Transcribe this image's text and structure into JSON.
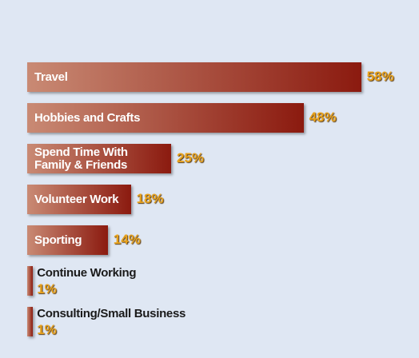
{
  "chart_data": {
    "type": "bar",
    "orientation": "horizontal",
    "categories": [
      "Travel",
      "Hobbies and Crafts",
      "Spend Time With\nFamily & Friends",
      "Volunteer Work",
      "Sporting",
      "Continue Working",
      "Consulting/Small Business"
    ],
    "values": [
      58,
      48,
      25,
      18,
      14,
      1,
      1
    ],
    "value_labels": [
      "58%",
      "48%",
      "25%",
      "18%",
      "14%",
      "1%",
      "1%"
    ],
    "color": "#8b1a0f"
  }
}
